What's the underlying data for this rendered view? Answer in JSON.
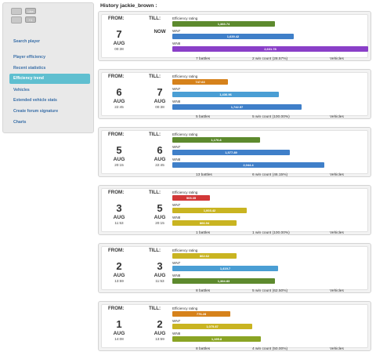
{
  "page": {
    "title": "History jackie_brown :"
  },
  "colors": {
    "green": "#5d8a2e",
    "blue": "#3f7fc9",
    "purple": "#8a3fc8",
    "orange": "#d6821b",
    "teal": "#4a9ed4",
    "red": "#d23838",
    "yellow": "#c9b421",
    "olive": "#8aa424",
    "nav_active": "#5fbfd0",
    "link": "#3a6fa8"
  },
  "sidebar": {
    "widgets": [
      "Like",
      "+1"
    ],
    "items": [
      {
        "label": "Search player",
        "active": false
      },
      {
        "label": "Player efficiency",
        "active": false
      },
      {
        "label": "Recent statistics",
        "active": false
      },
      {
        "label": "Efficiency trend",
        "active": true
      },
      {
        "label": "Vehicles",
        "active": false
      },
      {
        "label": "Extended vehicle stats",
        "active": false
      },
      {
        "label": "Create forum signature",
        "active": false
      },
      {
        "label": "Charts",
        "active": false
      }
    ]
  },
  "labels": {
    "from": "FROM:",
    "till": "TILL:",
    "efficiency": "Efficiency rating",
    "wn7": "WN7",
    "wn8": "WN8",
    "vehicles": "Vehicles"
  },
  "scale_max": 2700,
  "entries": [
    {
      "from": {
        "day": "7",
        "month": "AUG",
        "time": "00:38"
      },
      "till": {
        "now": "NOW"
      },
      "eff": {
        "value": "1,383.74",
        "num": 1383.74,
        "color": "green"
      },
      "wn7": {
        "value": "1,639.42",
        "num": 1639.42,
        "color": "blue"
      },
      "wn8": {
        "value": "2,631.78",
        "num": 2631.78,
        "color": "purple"
      },
      "battles": "7 battles",
      "wins": "2 win count (28.57%)"
    },
    {
      "from": {
        "day": "6",
        "month": "AUG",
        "time": "22:45"
      },
      "till": {
        "day": "7",
        "month": "AUG",
        "time": "00:38"
      },
      "eff": {
        "value": "747.63",
        "num": 747.63,
        "color": "orange"
      },
      "wn7": {
        "value": "1,436.96",
        "num": 1436.96,
        "color": "teal"
      },
      "wn8": {
        "value": "1,742.57",
        "num": 1742.57,
        "color": "blue"
      },
      "battles": "5 battles",
      "wins": "5 win count (100.00%)"
    },
    {
      "from": {
        "day": "5",
        "month": "AUG",
        "time": "20:15"
      },
      "till": {
        "day": "6",
        "month": "AUG",
        "time": "22:45"
      },
      "eff": {
        "value": "1,176.8",
        "num": 1176.8,
        "color": "green"
      },
      "wn7": {
        "value": "1,577.89",
        "num": 1577.89,
        "color": "blue"
      },
      "wn8": {
        "value": "2,044.4",
        "num": 2044.4,
        "color": "blue"
      },
      "battles": "13 battles",
      "wins": "6 win count (46.15%)"
    },
    {
      "from": {
        "day": "3",
        "month": "AUG",
        "time": "11:53"
      },
      "till": {
        "day": "5",
        "month": "AUG",
        "time": "20:15"
      },
      "eff": {
        "value": "505.35",
        "num": 505.35,
        "color": "red"
      },
      "wn7": {
        "value": "1,003.42",
        "num": 1003.42,
        "color": "yellow"
      },
      "wn8": {
        "value": "866.94",
        "num": 866.94,
        "color": "yellow"
      },
      "battles": "1 battles",
      "wins": "1 win count (100.00%)"
    },
    {
      "from": {
        "day": "2",
        "month": "AUG",
        "time": "13:59"
      },
      "till": {
        "day": "3",
        "month": "AUG",
        "time": "11:53"
      },
      "eff": {
        "value": "862.62",
        "num": 862.62,
        "color": "yellow"
      },
      "wn7": {
        "value": "1,419.7",
        "num": 1419.7,
        "color": "teal"
      },
      "wn8": {
        "value": "1,384.83",
        "num": 1384.83,
        "color": "green"
      },
      "battles": "8 battles",
      "wins": "5 win count (62.50%)"
    },
    {
      "from": {
        "day": "1",
        "month": "AUG",
        "time": "14:08"
      },
      "till": {
        "day": "2",
        "month": "AUG",
        "time": "13:59"
      },
      "eff": {
        "value": "776.28",
        "num": 776.28,
        "color": "orange"
      },
      "wn7": {
        "value": "1,075.87",
        "num": 1075.87,
        "color": "yellow"
      },
      "wn8": {
        "value": "1,195.8",
        "num": 1195.8,
        "color": "olive"
      },
      "battles": "8 battles",
      "wins": "4 win count (50.00%)"
    }
  ]
}
